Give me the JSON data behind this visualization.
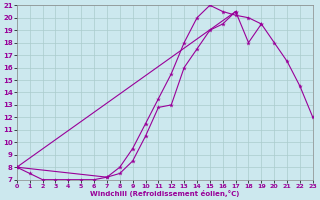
{
  "xlabel": "Windchill (Refroidissement éolien,°C)",
  "background_color": "#cce8ee",
  "line_color": "#990099",
  "grid_color": "#aacccc",
  "xlim": [
    0,
    23
  ],
  "ylim": [
    7,
    21
  ],
  "xticks": [
    0,
    1,
    2,
    3,
    4,
    5,
    6,
    7,
    8,
    9,
    10,
    11,
    12,
    13,
    14,
    15,
    16,
    17,
    18,
    19,
    20,
    21,
    22,
    23
  ],
  "yticks": [
    7,
    8,
    9,
    10,
    11,
    12,
    13,
    14,
    15,
    16,
    17,
    18,
    19,
    20,
    21
  ],
  "curve1_x": [
    0,
    1,
    2,
    3,
    4,
    5,
    6,
    7,
    8,
    9,
    10,
    11,
    12,
    13,
    14,
    15,
    16,
    17,
    18,
    19
  ],
  "curve1_y": [
    8,
    7.5,
    7,
    7,
    7,
    7,
    7,
    7.2,
    8.0,
    9.5,
    11.5,
    13.5,
    15.5,
    18.0,
    20.0,
    21.0,
    20.5,
    20.2,
    20.0,
    19.5
  ],
  "curve2_x": [
    0,
    7,
    8,
    9,
    10,
    11,
    12,
    13,
    14,
    15,
    16,
    17
  ],
  "curve2_y": [
    8,
    7.2,
    7.5,
    8.5,
    10.5,
    12.8,
    13.0,
    16.0,
    17.5,
    19.0,
    19.5,
    20.5
  ],
  "curve3_x": [
    0,
    17,
    18,
    19,
    20,
    21,
    22,
    23
  ],
  "curve3_y": [
    8,
    20.5,
    18.0,
    19.5,
    18.0,
    16.5,
    14.5,
    12.0
  ]
}
